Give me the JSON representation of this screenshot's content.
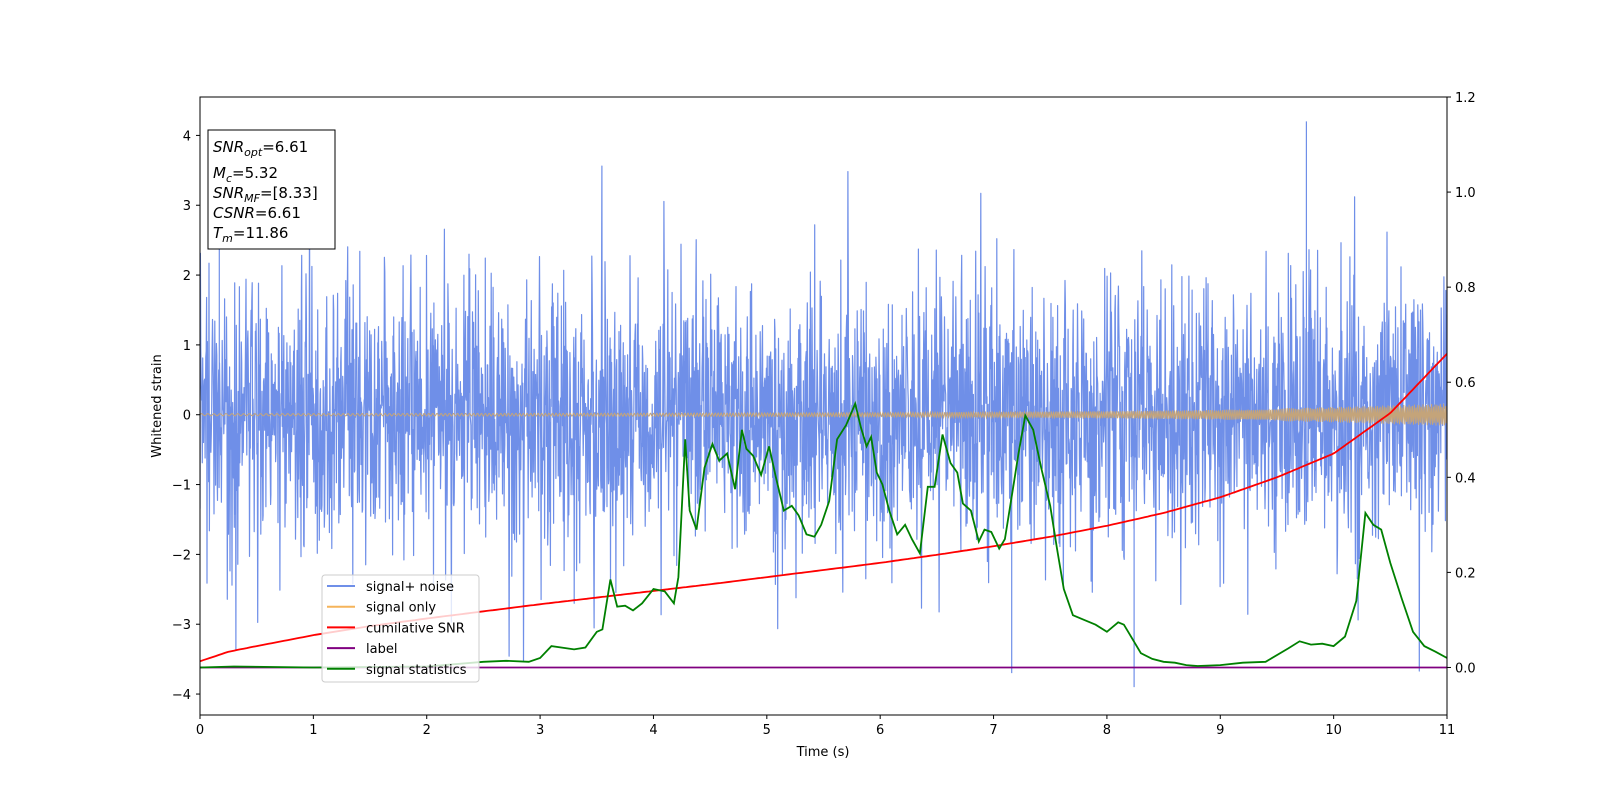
{
  "chart_data": {
    "type": "line",
    "xlabel": "Time (s)",
    "ylabel": "Whitened strain",
    "xlim": [
      0,
      11
    ],
    "ylim": [
      -4.3,
      4.55
    ],
    "y2lim": [
      -0.1,
      1.2
    ],
    "x_ticks": [
      "0",
      "1",
      "2",
      "3",
      "4",
      "5",
      "6",
      "7",
      "8",
      "9",
      "10",
      "11"
    ],
    "y_ticks": [
      "4",
      "3",
      "2",
      "1",
      "0",
      "−1",
      "−2",
      "−3",
      "−4"
    ],
    "y2_ticks": [
      "1.2",
      "1.0",
      "0.8",
      "0.6",
      "0.4",
      "0.2",
      "0.0"
    ],
    "info_box": [
      {
        "var": "SNR",
        "sub": "opt",
        "value": "=6.61"
      },
      {
        "var": "M",
        "sub": "c",
        "value": "=5.32"
      },
      {
        "var": "SNR",
        "sub": "MF",
        "value": "=[8.33]"
      },
      {
        "var": "CSNR",
        "sub": "",
        "value": "=6.61"
      },
      {
        "var": "T",
        "sub": "m",
        "value": "=11.86"
      }
    ],
    "legend": {
      "position": "lower-left",
      "entries": [
        {
          "label": "signal+ noise",
          "color": "#6f8fe8"
        },
        {
          "label": "signal only",
          "color": "#f5b45a"
        },
        {
          "label": "cumilative SNR",
          "color": "#ff0000"
        },
        {
          "label": "label",
          "color": "#800080"
        },
        {
          "label": "signal statistics",
          "color": "#008000"
        }
      ]
    },
    "series": [
      {
        "name": "signal+ noise",
        "axis": "left",
        "color": "#6f8fe8",
        "description_level": {
          "typical_band": [
            -2.2,
            2.2
          ],
          "peak_max": 4.2,
          "peak_min": -3.9
        }
      },
      {
        "name": "signal only",
        "axis": "left",
        "color": "#c4a47a",
        "envelope_x": [
          0,
          2,
          4,
          6,
          8,
          9,
          10,
          11
        ],
        "envelope_amp": [
          0.015,
          0.018,
          0.022,
          0.03,
          0.05,
          0.07,
          0.11,
          0.16
        ]
      },
      {
        "name": "cumilative SNR",
        "axis": "right",
        "color": "#ff0000",
        "x": [
          0,
          0.25,
          0.5,
          1,
          1.5,
          2,
          2.5,
          3,
          3.5,
          4,
          4.5,
          5,
          5.5,
          6,
          6.5,
          7,
          7.5,
          8,
          8.5,
          9,
          9.5,
          10,
          10.5,
          11
        ],
        "y": [
          0.013,
          0.033,
          0.045,
          0.068,
          0.087,
          0.103,
          0.118,
          0.133,
          0.147,
          0.161,
          0.175,
          0.19,
          0.205,
          0.22,
          0.237,
          0.255,
          0.275,
          0.298,
          0.325,
          0.358,
          0.4,
          0.45,
          0.535,
          0.66
        ]
      },
      {
        "name": "label",
        "axis": "right",
        "color": "#800080",
        "x": [
          0,
          11
        ],
        "y": [
          0,
          0
        ]
      },
      {
        "name": "signal statistics",
        "axis": "right",
        "color": "#008000",
        "x": [
          0,
          0.3,
          1,
          2,
          2.5,
          2.7,
          2.9,
          3.0,
          3.1,
          3.3,
          3.4,
          3.5,
          3.55,
          3.62,
          3.68,
          3.75,
          3.82,
          3.9,
          4.0,
          4.1,
          4.18,
          4.22,
          4.28,
          4.32,
          4.38,
          4.45,
          4.52,
          4.58,
          4.65,
          4.72,
          4.78,
          4.82,
          4.88,
          4.95,
          5.02,
          5.08,
          5.15,
          5.22,
          5.28,
          5.35,
          5.42,
          5.48,
          5.55,
          5.62,
          5.7,
          5.78,
          5.83,
          5.88,
          5.92,
          5.97,
          6.02,
          6.08,
          6.15,
          6.22,
          6.28,
          6.35,
          6.42,
          6.48,
          6.55,
          6.62,
          6.68,
          6.73,
          6.8,
          6.87,
          6.92,
          6.98,
          7.05,
          7.1,
          7.18,
          7.22,
          7.28,
          7.35,
          7.42,
          7.5,
          7.56,
          7.62,
          7.7,
          7.8,
          7.9,
          8.0,
          8.1,
          8.15,
          8.2,
          8.3,
          8.4,
          8.5,
          8.6,
          8.7,
          8.8,
          9.0,
          9.2,
          9.4,
          9.6,
          9.7,
          9.8,
          9.9,
          10.0,
          10.1,
          10.2,
          10.28,
          10.35,
          10.42,
          10.5,
          10.6,
          10.7,
          10.8,
          10.9,
          11.0
        ],
        "y": [
          0.0,
          0.002,
          0.0,
          0.002,
          0.012,
          0.014,
          0.012,
          0.02,
          0.045,
          0.038,
          0.042,
          0.075,
          0.08,
          0.185,
          0.128,
          0.13,
          0.12,
          0.135,
          0.165,
          0.16,
          0.135,
          0.19,
          0.48,
          0.33,
          0.29,
          0.42,
          0.47,
          0.435,
          0.45,
          0.375,
          0.5,
          0.46,
          0.445,
          0.405,
          0.465,
          0.4,
          0.33,
          0.34,
          0.32,
          0.28,
          0.275,
          0.3,
          0.35,
          0.48,
          0.51,
          0.555,
          0.505,
          0.465,
          0.485,
          0.41,
          0.385,
          0.33,
          0.28,
          0.3,
          0.27,
          0.24,
          0.38,
          0.38,
          0.49,
          0.43,
          0.41,
          0.345,
          0.33,
          0.265,
          0.29,
          0.285,
          0.25,
          0.27,
          0.39,
          0.45,
          0.53,
          0.5,
          0.42,
          0.34,
          0.25,
          0.165,
          0.11,
          0.1,
          0.09,
          0.075,
          0.095,
          0.09,
          0.07,
          0.03,
          0.018,
          0.012,
          0.01,
          0.005,
          0.003,
          0.005,
          0.01,
          0.012,
          0.04,
          0.055,
          0.048,
          0.05,
          0.045,
          0.065,
          0.14,
          0.325,
          0.3,
          0.29,
          0.22,
          0.145,
          0.075,
          0.045,
          0.033,
          0.02
        ]
      }
    ]
  }
}
